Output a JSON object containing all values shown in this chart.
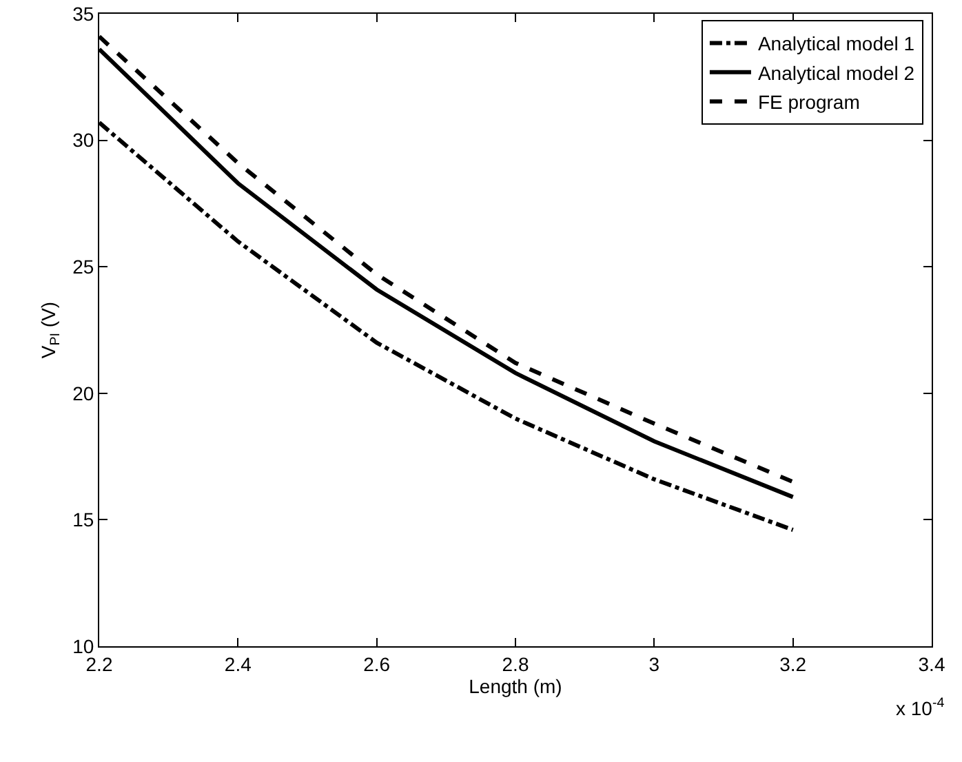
{
  "chart_data": {
    "type": "line",
    "xlabel": "Length (m)",
    "ylabel": "V$_{PI}$ (V)",
    "annotations": [
      "x 10$^{-4}$"
    ],
    "x": [
      2.2,
      2.4,
      2.6,
      2.8,
      3.0,
      3.2
    ],
    "series": [
      {
        "name": "Analytical model 1",
        "color": "#000000",
        "line_style": "dashdot",
        "values": [
          30.7,
          26.0,
          22.0,
          19.0,
          16.6,
          14.6
        ]
      },
      {
        "name": "Analytical model 2",
        "color": "#000000",
        "line_style": "solid",
        "values": [
          33.6,
          28.3,
          24.1,
          20.8,
          18.1,
          15.9
        ]
      },
      {
        "name": "FE program",
        "color": "#000000",
        "line_style": "dashed",
        "values": [
          34.1,
          29.1,
          24.7,
          21.2,
          18.8,
          16.5
        ]
      }
    ],
    "xlim": [
      2.2,
      3.4
    ],
    "xticks": [
      2.2,
      2.4,
      2.6,
      2.8,
      3,
      3.2,
      3.4
    ],
    "ylim": [
      10,
      35
    ],
    "yticks": [
      10,
      15,
      20,
      25,
      30,
      35
    ],
    "grid": false,
    "legend": "top right",
    "marker": "none"
  }
}
